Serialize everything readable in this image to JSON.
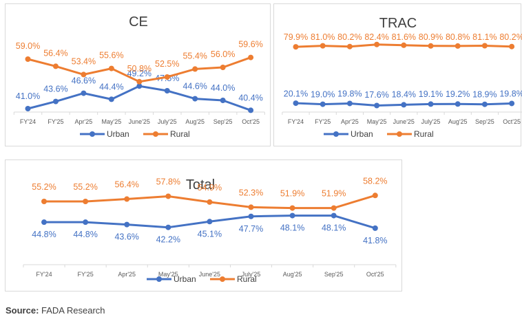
{
  "chart_data": [
    {
      "id": "ce",
      "type": "line",
      "title": "CE",
      "categories": [
        "FY'24",
        "FY'25",
        "Apr'25",
        "May'25",
        "June'25",
        "July'25",
        "Aug'25",
        "Sep'25",
        "Oct'25"
      ],
      "series": [
        {
          "name": "Urban",
          "color": "#4472C4",
          "values": [
            41.0,
            43.6,
            46.6,
            44.4,
            49.2,
            47.5,
            44.6,
            44.0,
            40.4
          ],
          "labels": [
            "41.0%",
            "43.6%",
            "46.6%",
            "44.4%",
            "49.2%",
            "47.5%",
            "44.6%",
            "44.0%",
            "40.4%"
          ]
        },
        {
          "name": "Rural",
          "color": "#ED7D31",
          "values": [
            59.0,
            56.4,
            53.4,
            55.6,
            50.8,
            52.5,
            55.4,
            56.0,
            59.6
          ],
          "labels": [
            "59.0%",
            "56.4%",
            "53.4%",
            "55.6%",
            "50.8%",
            "52.5%",
            "55.4%",
            "56.0%",
            "59.6%"
          ]
        }
      ],
      "xlabel": "",
      "ylabel": "",
      "grid": false,
      "legend": "bottom"
    },
    {
      "id": "trac",
      "type": "line",
      "title": "TRAC",
      "categories": [
        "FY'24",
        "FY'25",
        "Apr'25",
        "May'25",
        "June'25",
        "July'25",
        "Aug'25",
        "Sep'25",
        "Oct'25"
      ],
      "series": [
        {
          "name": "Urban",
          "color": "#4472C4",
          "values": [
            20.1,
            19.0,
            19.8,
            17.6,
            18.4,
            19.1,
            19.2,
            18.9,
            19.8
          ],
          "labels": [
            "20.1%",
            "19.0%",
            "19.8%",
            "17.6%",
            "18.4%",
            "19.1%",
            "19.2%",
            "18.9%",
            "19.8%"
          ]
        },
        {
          "name": "Rural",
          "color": "#ED7D31",
          "values": [
            79.9,
            81.0,
            80.2,
            82.4,
            81.6,
            80.9,
            80.8,
            81.1,
            80.2
          ],
          "labels": [
            "79.9%",
            "81.0%",
            "80.2%",
            "82.4%",
            "81.6%",
            "80.9%",
            "80.8%",
            "81.1%",
            "80.2%"
          ]
        }
      ],
      "xlabel": "",
      "ylabel": "",
      "grid": false,
      "legend": "bottom"
    },
    {
      "id": "total",
      "type": "line",
      "title": "Total",
      "categories": [
        "FY'24",
        "FY'25",
        "Apr'25",
        "May'25",
        "June'25",
        "July'25",
        "Aug'25",
        "Sep'25",
        "Oct'25"
      ],
      "series": [
        {
          "name": "Urban",
          "color": "#4472C4",
          "values": [
            44.8,
            44.8,
            43.6,
            42.2,
            45.1,
            47.7,
            48.1,
            48.1,
            41.8
          ],
          "labels": [
            "44.8%",
            "44.8%",
            "43.6%",
            "42.2%",
            "45.1%",
            "47.7%",
            "48.1%",
            "48.1%",
            "41.8%"
          ]
        },
        {
          "name": "Rural",
          "color": "#ED7D31",
          "values": [
            55.2,
            55.2,
            56.4,
            57.8,
            54.9,
            52.3,
            51.9,
            51.9,
            58.2
          ],
          "labels": [
            "55.2%",
            "55.2%",
            "56.4%",
            "57.8%",
            "54.9%",
            "52.3%",
            "51.9%",
            "51.9%",
            "58.2%"
          ]
        }
      ],
      "xlabel": "",
      "ylabel": "",
      "grid": false,
      "legend": "bottom"
    }
  ],
  "source": {
    "label": "Source:",
    "text": " FADA Research"
  }
}
